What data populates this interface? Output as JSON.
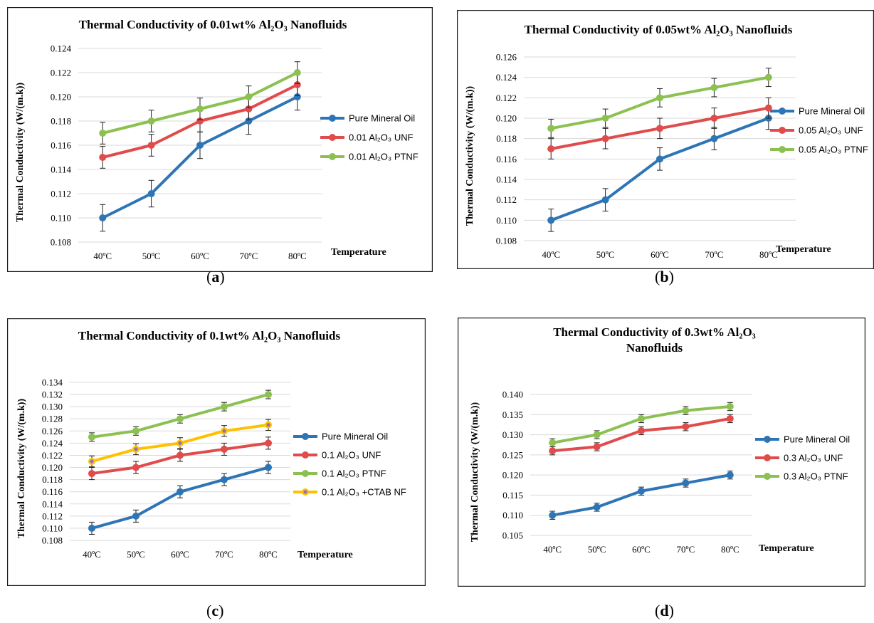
{
  "captions": [
    "(a)",
    "(b)",
    "(c)",
    "(d)"
  ],
  "chart_data": [
    {
      "type": "line",
      "title": "Thermal Conductivity of 0.01wt% Al₂O₃ Nanofluids",
      "title_lines": [
        "Thermal Conductivity of 0.01wt% Al₂O₃ Nanofluids"
      ],
      "xlabel": "Temperature",
      "ylabel": "Thermal Conductivity (W/(m.k))",
      "categories": [
        "40ºC",
        "50ºC",
        "60ºC",
        "70ºC",
        "80ºC"
      ],
      "ylim": [
        0.108,
        0.124
      ],
      "yticks": [
        "0.108",
        "0.110",
        "0.112",
        "0.114",
        "0.116",
        "0.118",
        "0.120",
        "0.122",
        "0.124"
      ],
      "grid": true,
      "legend": "right",
      "series": [
        {
          "name": "Pure Mineral Oil",
          "color": "#2e75b6",
          "values": [
            0.11,
            0.112,
            0.116,
            0.118,
            0.12
          ],
          "error": 0.0011
        },
        {
          "name": "0.01 Al₂O₃ UNF",
          "color": "#e04b4b",
          "values": [
            0.115,
            0.116,
            0.118,
            0.119,
            0.121
          ],
          "error": 0.0009
        },
        {
          "name": "0.01 Al₂O₃ PTNF",
          "color": "#8cc152",
          "values": [
            0.117,
            0.118,
            0.119,
            0.12,
            0.122
          ],
          "error": 0.0009
        }
      ]
    },
    {
      "type": "line",
      "title": "Thermal Conductivity of 0.05wt% Al₂O₃ Nanofluids",
      "title_lines": [
        "Thermal Conductivity of 0.05wt% Al₂O₃ Nanofluids"
      ],
      "xlabel": "Temperature",
      "ylabel": "Thermal Conductivity (W/(m.k))",
      "categories": [
        "40ºC",
        "50ºC",
        "60ºC",
        "70ºC",
        "80ºC"
      ],
      "ylim": [
        0.108,
        0.126
      ],
      "yticks": [
        "0.108",
        "0.110",
        "0.112",
        "0.114",
        "0.116",
        "0.118",
        "0.120",
        "0.122",
        "0.124",
        "0.126"
      ],
      "grid": true,
      "legend": "right",
      "series": [
        {
          "name": "Pure Mineral Oil",
          "color": "#2e75b6",
          "values": [
            0.11,
            0.112,
            0.116,
            0.118,
            0.12
          ],
          "error": 0.0011
        },
        {
          "name": "0.05 Al₂O₃ UNF",
          "color": "#e04b4b",
          "values": [
            0.117,
            0.118,
            0.119,
            0.12,
            0.121
          ],
          "error": 0.001
        },
        {
          "name": "0.05 Al₂O₃ PTNF",
          "color": "#8cc152",
          "values": [
            0.119,
            0.12,
            0.122,
            0.123,
            0.124
          ],
          "error": 0.0009
        }
      ]
    },
    {
      "type": "line",
      "title": "Thermal Conductivity of 0.1wt% Al₂O₃ Nanofluids",
      "title_lines": [
        "Thermal Conductivity of 0.1wt% Al₂O₃ Nanofluids"
      ],
      "xlabel": "Temperature",
      "ylabel": "Thermal Conductivity (W/(m.k))",
      "categories": [
        "40ºC",
        "50ºC",
        "60ºC",
        "70ºC",
        "80ºC"
      ],
      "ylim": [
        0.108,
        0.134
      ],
      "yticks": [
        "0.108",
        "0.110",
        "0.112",
        "0.114",
        "0.116",
        "0.118",
        "0.120",
        "0.122",
        "0.124",
        "0.126",
        "0.128",
        "0.130",
        "0.132",
        "0.134"
      ],
      "grid": true,
      "legend": "right",
      "series": [
        {
          "name": "Pure Mineral Oil",
          "color": "#2e75b6",
          "values": [
            0.11,
            0.112,
            0.116,
            0.118,
            0.12
          ],
          "error": 0.001
        },
        {
          "name": "0.1 Al₂O₃ UNF",
          "color": "#e04b4b",
          "values": [
            0.119,
            0.12,
            0.122,
            0.123,
            0.124
          ],
          "error": 0.001
        },
        {
          "name": "0.1 Al₂O₃ PTNF",
          "color": "#8cc152",
          "values": [
            0.125,
            0.126,
            0.128,
            0.13,
            0.132
          ],
          "error": 0.0007
        },
        {
          "name": "0.1 Al₂O₃ +CTAB NF",
          "color": "#ffc000",
          "marker": "#8e6fc8",
          "values": [
            0.121,
            0.123,
            0.124,
            0.126,
            0.127
          ],
          "error": 0.0009
        }
      ]
    },
    {
      "type": "line",
      "title": "Thermal Conductivity of 0.3wt% Al₂O₃ Nanofluids",
      "title_lines": [
        "Thermal Conductivity of 0.3wt% Al₂O₃",
        "Nanofluids"
      ],
      "xlabel": "Temperature",
      "ylabel": "Thermal Conductivity (W/(m.k))",
      "categories": [
        "40ºC",
        "50ºC",
        "60ºC",
        "70ºC",
        "80ºC"
      ],
      "ylim": [
        0.105,
        0.14
      ],
      "yticks": [
        "0.105",
        "0.110",
        "0.115",
        "0.120",
        "0.125",
        "0.130",
        "0.135",
        "0.140"
      ],
      "grid": true,
      "legend": "right",
      "series": [
        {
          "name": "Pure Mineral Oil",
          "color": "#2e75b6",
          "values": [
            0.11,
            0.112,
            0.116,
            0.118,
            0.12
          ],
          "error": 0.001
        },
        {
          "name": "0.3 Al₂O₃ UNF",
          "color": "#e04b4b",
          "values": [
            0.126,
            0.127,
            0.131,
            0.132,
            0.134
          ],
          "error": 0.001
        },
        {
          "name": "0.3 Al₂O₃ PTNF",
          "color": "#8cc152",
          "values": [
            0.128,
            0.13,
            0.134,
            0.136,
            0.137
          ],
          "error": 0.001
        }
      ]
    }
  ]
}
